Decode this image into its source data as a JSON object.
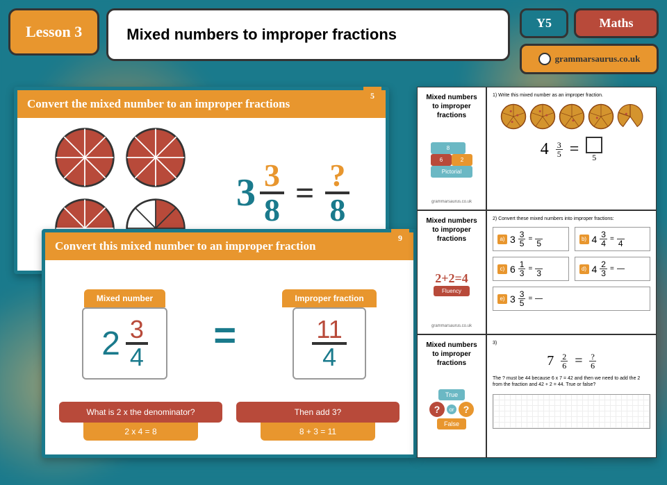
{
  "header": {
    "lesson_badge": "Lesson 3",
    "title": "Mixed numbers to improper fractions",
    "year_badge": "Y5",
    "subject_badge": "Maths",
    "site_badge": "grammarsaurus.co.uk"
  },
  "slide1": {
    "number": "5",
    "title": "Convert the mixed number to an improper fractions",
    "pie_count": 4,
    "pie_slices": 8,
    "pie_fill_color": "#b84a3a",
    "pie_stroke_color": "#333333",
    "equation": {
      "whole": "3",
      "num": "3",
      "den": "8",
      "equals": "=",
      "result_num": "?",
      "result_den": "8"
    }
  },
  "slide2": {
    "number": "9",
    "title": "Convert this mixed number to an improper fraction",
    "left_label": "Mixed number",
    "right_label": "Improper fraction",
    "mixed": {
      "whole": "2",
      "num": "3",
      "den": "4"
    },
    "equals": "=",
    "improper": {
      "num": "11",
      "den": "4"
    },
    "q1": "What is 2 x the denominator?",
    "a1": "2 x 4 = 8",
    "q2": "Then add 3?",
    "a2": "8 + 3 = 11"
  },
  "worksheet": {
    "section_title": "Mixed numbers to improper fractions",
    "site": "grammarsaurus.co.uk",
    "row1": {
      "tag_top": "8",
      "tag_left": "6",
      "tag_right": "2",
      "tag_bottom": "Pictorial",
      "q_title": "1) Write this mixed number as an improper fraction.",
      "pie_count": 5,
      "pie_slices": 5,
      "pie_fill_color": "#d4942e",
      "pie_stroke_color": "#8b4513",
      "whole": "4",
      "num": "3",
      "den": "5",
      "result_den": "5"
    },
    "row2": {
      "icon_text": "2+2=4",
      "icon_label": "Fluency",
      "q_title": "2) Convert these mixed numbers into improper fractions:",
      "items": [
        {
          "letter": "a)",
          "whole": "3",
          "num": "3",
          "den": "5",
          "rden": "5"
        },
        {
          "letter": "b)",
          "whole": "4",
          "num": "3",
          "den": "4",
          "rden": "4"
        },
        {
          "letter": "c)",
          "whole": "6",
          "num": "1",
          "den": "3",
          "rden": "3"
        },
        {
          "letter": "d)",
          "whole": "4",
          "num": "2",
          "den": "3",
          "rden": ""
        },
        {
          "letter": "e)",
          "whole": "3",
          "num": "3",
          "den": "5",
          "rden": ""
        }
      ]
    },
    "row3": {
      "true_label": "True",
      "false_label": "False",
      "q_num": "3)",
      "whole": "7",
      "num": "2",
      "den": "6",
      "result_num": "?",
      "result_den": "6",
      "statement": "The ? must be 44 because 6 x 7 = 42 and then we need to add the 2 from the fraction and 42 + 2 = 44. True or false?"
    }
  },
  "colors": {
    "teal": "#1a7a8c",
    "orange": "#e8962e",
    "red": "#b84a3a",
    "light_teal": "#6bb8c4"
  }
}
